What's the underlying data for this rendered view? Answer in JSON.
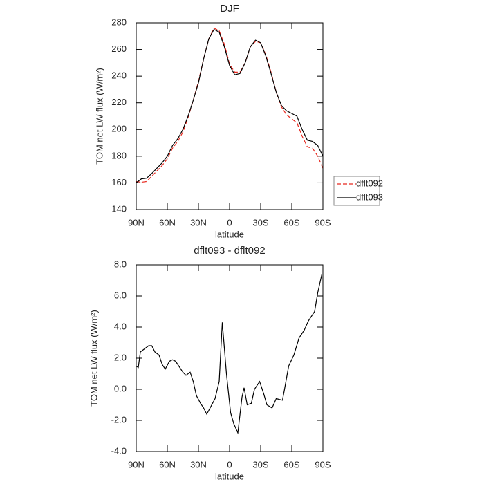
{
  "chart_data": [
    {
      "type": "line",
      "title": "DJF",
      "xlabel": "latitude",
      "ylabel": "TOM net LW flux (W/m²)",
      "x": [
        90,
        85,
        80,
        75,
        70,
        65,
        60,
        55,
        50,
        45,
        40,
        35,
        30,
        25,
        20,
        15,
        10,
        5,
        0,
        -5,
        -10,
        -15,
        -20,
        -25,
        -30,
        -35,
        -40,
        -45,
        -50,
        -55,
        -60,
        -65,
        -70,
        -75,
        -80,
        -85,
        -90
      ],
      "series": [
        {
          "name": "dflt092",
          "color": "#e8281e",
          "dash": true,
          "values": [
            161,
            160.5,
            161,
            165,
            169,
            173,
            178,
            186,
            191,
            198,
            209,
            222,
            236,
            253,
            268,
            276,
            274,
            264,
            249,
            243,
            243,
            250,
            262,
            266,
            265,
            256,
            243,
            228,
            217,
            211,
            208,
            205,
            195,
            187,
            186,
            180,
            171
          ]
        },
        {
          "name": "dflt093",
          "color": "#000000",
          "dash": false,
          "values": [
            160,
            163,
            163.5,
            167,
            171,
            175,
            180,
            188,
            193,
            200,
            210,
            222,
            235,
            253,
            268,
            275,
            273,
            262,
            248,
            241,
            242,
            250,
            262,
            267,
            265,
            255,
            242,
            228,
            218,
            214,
            212,
            210,
            200,
            192,
            191,
            188,
            180
          ]
        }
      ],
      "xlim": [
        90,
        -90
      ],
      "xticks": [
        {
          "value": 90,
          "label": "90N"
        },
        {
          "value": 60,
          "label": "60N"
        },
        {
          "value": 30,
          "label": "30N"
        },
        0,
        {
          "value": -30,
          "label": "30S"
        },
        {
          "value": -60,
          "label": "60S"
        },
        {
          "value": -90,
          "label": "90S"
        }
      ],
      "ylim": [
        140,
        280
      ],
      "yticks": [
        140,
        160,
        180,
        200,
        220,
        240,
        260,
        280
      ],
      "legend": "right"
    },
    {
      "type": "line",
      "title": "dflt093 - dflt092",
      "xlabel": "latitude",
      "ylabel": "TOM net LW flux (W/m²)",
      "x": [
        90,
        88,
        86,
        82,
        78,
        75,
        72,
        68,
        65,
        62,
        58,
        55,
        52,
        48,
        45,
        42,
        38,
        35,
        32,
        28,
        25,
        22,
        18,
        14,
        10,
        7,
        3,
        -1,
        -4,
        -8,
        -12,
        -14,
        -17,
        -21,
        -24,
        -29,
        -33,
        -36,
        -41,
        -45,
        -51,
        -53,
        -57,
        -62,
        -67,
        -72,
        -76,
        -82,
        -85,
        -89
      ],
      "values": [
        1.5,
        1.4,
        2.4,
        2.6,
        2.8,
        2.8,
        2.4,
        2.2,
        1.6,
        1.3,
        1.8,
        1.9,
        1.8,
        1.4,
        1.1,
        0.9,
        1.1,
        0.5,
        -0.4,
        -0.9,
        -1.2,
        -1.6,
        -1.1,
        -0.6,
        0.5,
        4.3,
        1.0,
        -1.5,
        -2.2,
        -2.8,
        -0.5,
        0.1,
        -1.0,
        -0.9,
        0.0,
        0.5,
        -0.3,
        -1.0,
        -1.2,
        -0.6,
        -0.7,
        0.0,
        1.5,
        2.2,
        3.3,
        3.8,
        4.4,
        5.0,
        6.2,
        7.4
      ],
      "color": "#000000",
      "xlim": [
        90,
        -90
      ],
      "xticks": [
        {
          "value": 90,
          "label": "90N"
        },
        {
          "value": 60,
          "label": "60N"
        },
        {
          "value": 30,
          "label": "30N"
        },
        0,
        {
          "value": -30,
          "label": "30S"
        },
        {
          "value": -60,
          "label": "60S"
        },
        {
          "value": -90,
          "label": "90S"
        }
      ],
      "ylim": [
        -4,
        8
      ],
      "yticks": [
        {
          "value": -4,
          "label": "-4.0"
        },
        {
          "value": -2,
          "label": "-2.0"
        },
        {
          "value": 0,
          "label": "0.0"
        },
        {
          "value": 2,
          "label": "2.0"
        },
        {
          "value": 4,
          "label": "4.0"
        },
        {
          "value": 6,
          "label": "6.0"
        },
        {
          "value": 8,
          "label": "8.0"
        }
      ]
    }
  ]
}
